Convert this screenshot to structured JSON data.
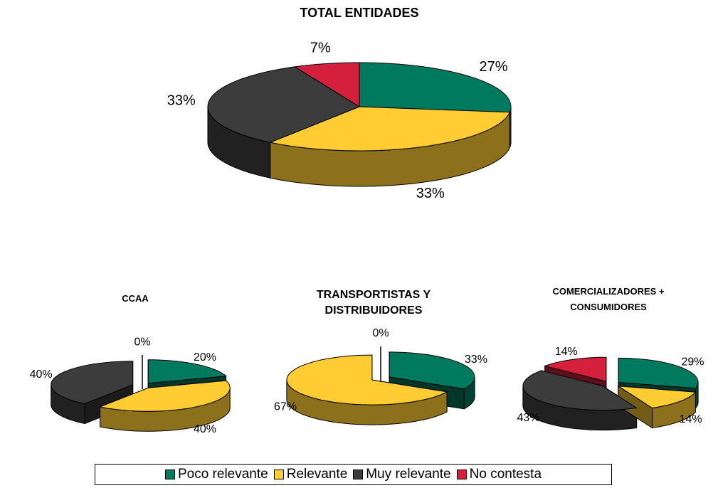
{
  "chart_data": [
    {
      "type": "pie",
      "title": "TOTAL ENTIDADES",
      "categories": [
        "Poco relevante",
        "Relevante",
        "Muy relevante",
        "No contesta"
      ],
      "colors": [
        "#007a5e",
        "#ffcc33",
        "#3c3c3c",
        "#d4203c"
      ],
      "values": [
        27,
        33,
        33,
        7
      ],
      "value_labels": [
        "27%",
        "33%",
        "33%",
        "7%"
      ]
    },
    {
      "type": "pie",
      "title": "CCAA",
      "categories": [
        "Poco relevante",
        "Relevante",
        "Muy relevante",
        "No contesta"
      ],
      "colors": [
        "#007a5e",
        "#ffcc33",
        "#3c3c3c",
        "#d4203c"
      ],
      "values": [
        20,
        40,
        40,
        0
      ],
      "value_labels": [
        "20%",
        "40%",
        "40%",
        "0%"
      ]
    },
    {
      "type": "pie",
      "title": "TRANSPORTISTAS Y DISTRIBUIDORES",
      "categories": [
        "Poco relevante",
        "Relevante",
        "Muy relevante",
        "No contesta"
      ],
      "colors": [
        "#007a5e",
        "#ffcc33",
        "#3c3c3c",
        "#d4203c"
      ],
      "values": [
        33,
        67,
        null,
        0
      ],
      "value_labels": [
        "33%",
        "67%",
        null,
        "0%"
      ]
    },
    {
      "type": "pie",
      "title": "COMERCIALIZADORES + CONSUMIDORES",
      "categories": [
        "Poco relevante",
        "Relevante",
        "Muy relevante",
        "No contesta"
      ],
      "colors": [
        "#007a5e",
        "#ffcc33",
        "#3c3c3c",
        "#d4203c"
      ],
      "values": [
        29,
        14,
        43,
        14
      ],
      "value_labels": [
        "29%",
        "14%",
        "43%",
        "14%"
      ]
    }
  ]
}
